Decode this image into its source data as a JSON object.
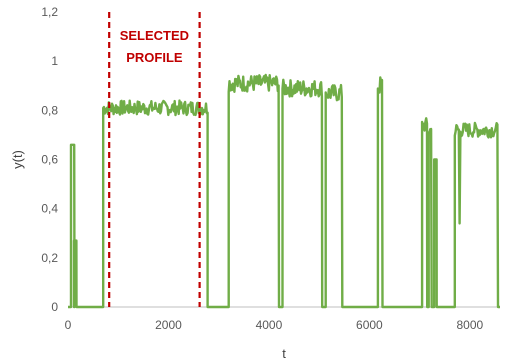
{
  "chart_data": {
    "type": "line",
    "xlabel": "t",
    "ylabel": "y(t)",
    "xlim": [
      0,
      8600
    ],
    "ylim": [
      0,
      1.2
    ],
    "x_ticks": [
      0,
      2000,
      4000,
      6000,
      8000
    ],
    "x_tick_labels": [
      "0",
      "2000",
      "4000",
      "6000",
      "8000"
    ],
    "y_ticks": [
      0,
      0.2,
      0.4,
      0.6,
      0.8,
      1.0,
      1.2
    ],
    "y_tick_labels": [
      "0",
      "0,2",
      "0,4",
      "0,6",
      "0,8",
      "1",
      "1,2"
    ],
    "grid": false,
    "series_color": "#70ad47",
    "series": [
      {
        "segments": [
          {
            "x_start": 60,
            "x_end": 130,
            "level": 0.66,
            "amp": 0.0
          },
          {
            "x_start": 120,
            "x_end": 170,
            "level": 0.27,
            "amp": 0.0
          },
          {
            "x_start": 700,
            "x_end": 2780,
            "level": 0.81,
            "amp": 0.03
          },
          {
            "x_start": 3200,
            "x_end": 4200,
            "level": 0.91,
            "amp": 0.035
          },
          {
            "x_start": 4270,
            "x_end": 5060,
            "level": 0.89,
            "amp": 0.035
          },
          {
            "x_start": 5130,
            "x_end": 5460,
            "level": 0.87,
            "amp": 0.035
          },
          {
            "x_start": 6170,
            "x_end": 6260,
            "level": 0.9,
            "amp": 0.04
          },
          {
            "x_start": 7050,
            "x_end": 7150,
            "level": 0.74,
            "amp": 0.03
          },
          {
            "x_start": 7180,
            "x_end": 7240,
            "level": 0.72,
            "amp": 0.03
          },
          {
            "x_start": 7290,
            "x_end": 7340,
            "level": 0.6,
            "amp": 0.0
          },
          {
            "x_start": 7700,
            "x_end": 8560,
            "level": 0.72,
            "amp": 0.03
          }
        ],
        "dips": [
          {
            "x": 4230,
            "to": 0.0
          },
          {
            "x": 5090,
            "to": 0.0
          },
          {
            "x": 7800,
            "to": 0.34
          },
          {
            "x": 8380,
            "to": 0.62
          }
        ]
      }
    ],
    "annotation": {
      "lines": [
        "SELECTED",
        "PROFILE"
      ],
      "x_start": 820,
      "x_end": 2620,
      "color": "#c00000"
    }
  }
}
